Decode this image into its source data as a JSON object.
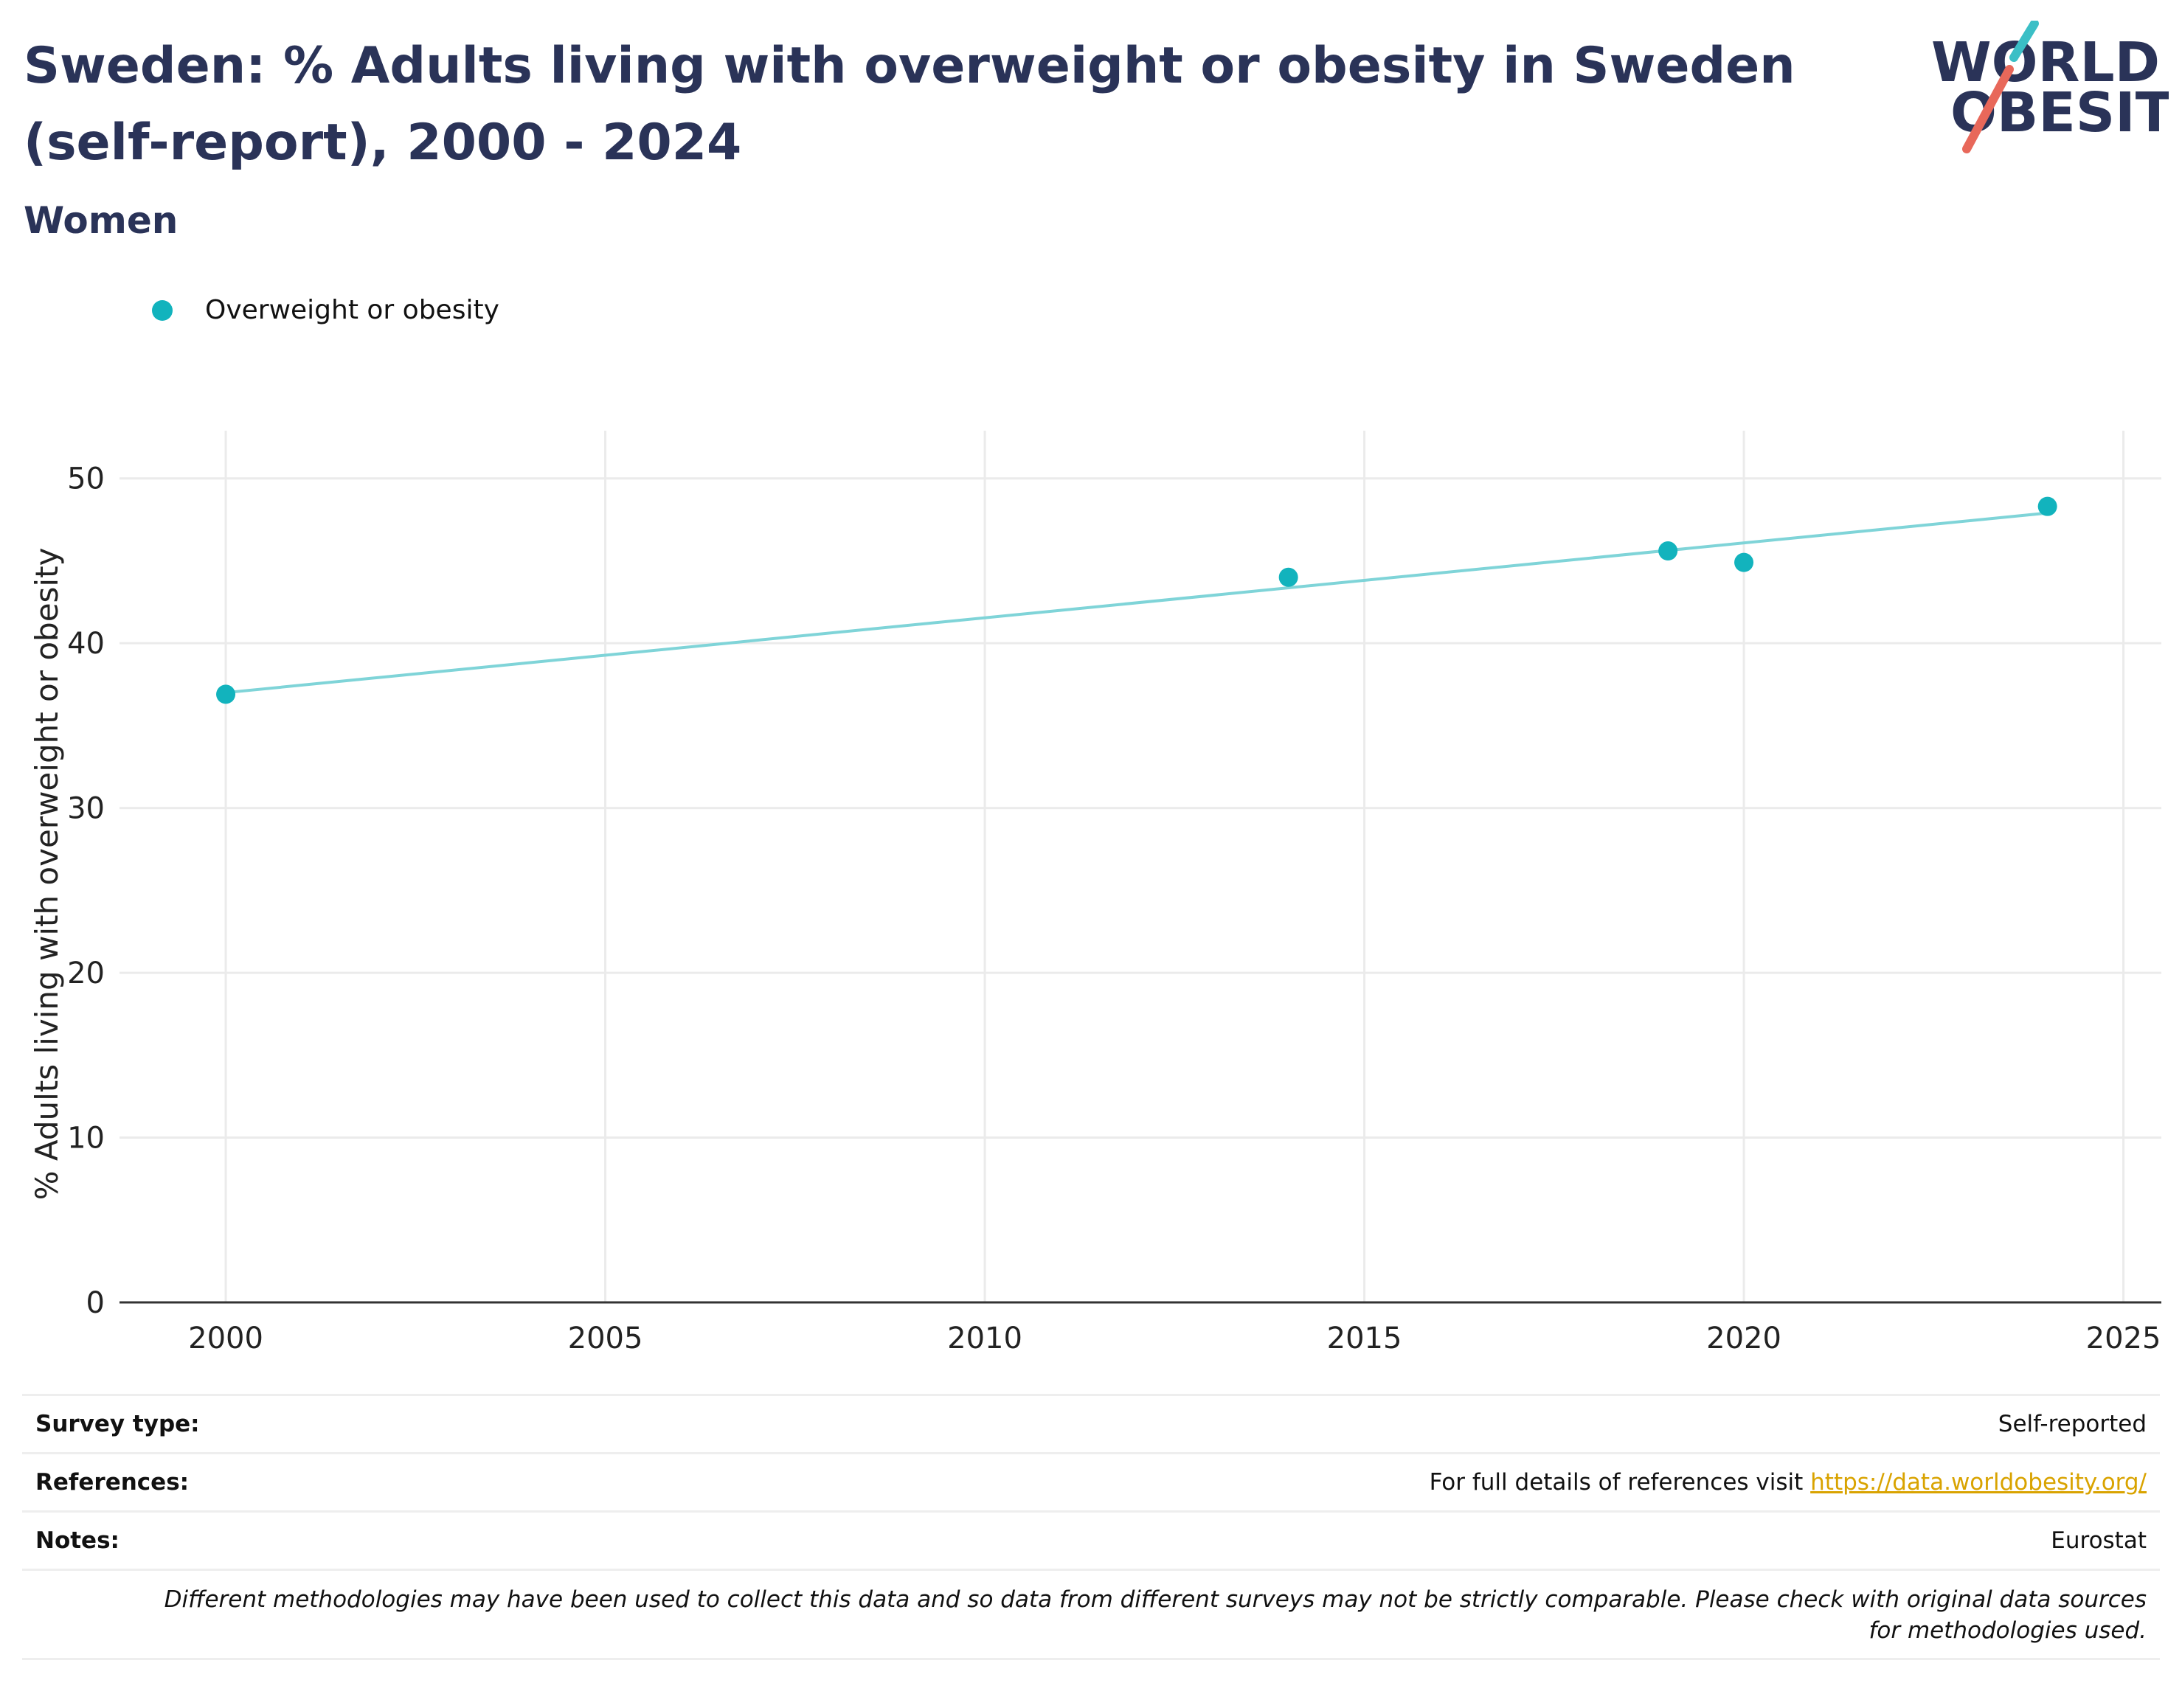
{
  "header": {
    "title": "Sweden: % Adults living with overweight or obesity in Sweden (self-report), 2000 - 2024",
    "subtitle": "Women",
    "logo_line1": "WORLD",
    "logo_line2": "OBESITY"
  },
  "colors": {
    "title": "#2a3358",
    "series": "#12b3bd",
    "trend": "#7fd4d8",
    "logo_teal": "#3bbfc6",
    "logo_red": "#e8685a",
    "link": "#d9a300"
  },
  "legend": {
    "label": "Overweight or obesity"
  },
  "chart_data": {
    "type": "scatter",
    "ylabel": "% Adults living with overweight or obesity",
    "xlabel": "",
    "xlim": [
      1998.6,
      2025.5
    ],
    "ylim": [
      0,
      52
    ],
    "x_ticks": [
      2000,
      2005,
      2010,
      2015,
      2020,
      2025
    ],
    "y_ticks": [
      0,
      10,
      20,
      30,
      40,
      50
    ],
    "grid": true,
    "legend_position": "top-left",
    "series": [
      {
        "name": "Overweight or obesity",
        "points": [
          {
            "x": 2000,
            "y": 36.9
          },
          {
            "x": 2014,
            "y": 44.0
          },
          {
            "x": 2019,
            "y": 45.6
          },
          {
            "x": 2020,
            "y": 44.9
          },
          {
            "x": 2024,
            "y": 48.3
          }
        ]
      }
    ],
    "trendline": {
      "x": [
        2000,
        2024
      ],
      "y": [
        37.0,
        47.9
      ]
    }
  },
  "meta": {
    "survey_type_label": "Survey type:",
    "survey_type_value": "Self-reported",
    "references_label": "References:",
    "references_text": "For full details of references visit ",
    "references_link": "https://data.worldobesity.org/",
    "notes_label": "Notes:",
    "notes_value": "Eurostat",
    "disclaimer": "Different methodologies may have been used to collect this data and so data from different surveys may not be strictly comparable. Please check with original data sources for methodologies used."
  }
}
